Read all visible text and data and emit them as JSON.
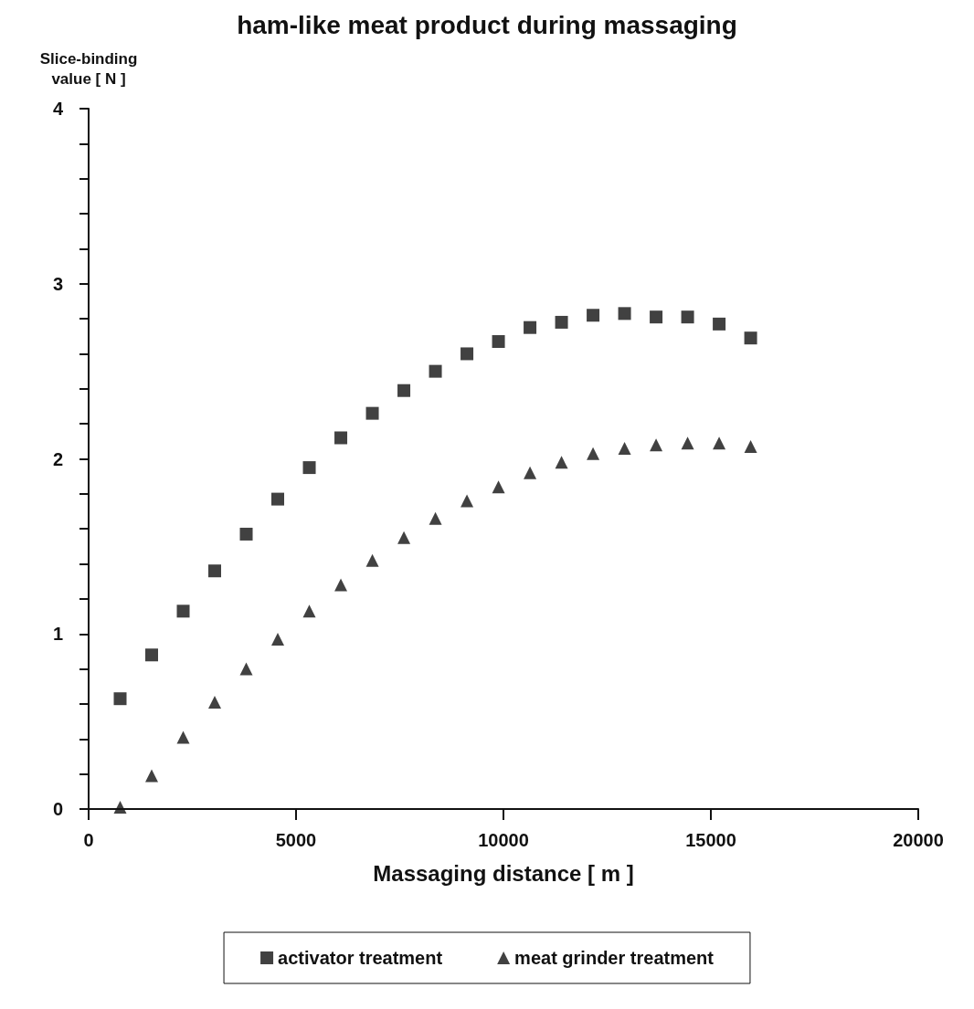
{
  "chart_data": {
    "type": "scatter",
    "title": "ham-like meat product during massaging",
    "xlabel": "Massaging distance [ m ]",
    "ylabel": "Slice-binding\nvalue [ N ]",
    "x": [
      760,
      1520,
      2280,
      3040,
      3800,
      4560,
      5320,
      6080,
      6840,
      7600,
      8360,
      9120,
      9880,
      10640,
      11400,
      12160,
      12920,
      13680,
      14440,
      15200,
      15960
    ],
    "series": [
      {
        "name": "activator treatment",
        "color": "#111111",
        "marker": "square",
        "values": [
          0.63,
          0.88,
          1.13,
          1.36,
          1.57,
          1.77,
          1.95,
          2.12,
          2.26,
          2.39,
          2.5,
          2.6,
          2.67,
          2.75,
          2.78,
          2.82,
          2.83,
          2.81,
          2.81,
          2.77,
          2.69
        ]
      },
      {
        "name": "meat grinder treatment",
        "color": "#111111",
        "marker": "triangle",
        "values": [
          0.01,
          0.19,
          0.41,
          0.61,
          0.8,
          0.97,
          1.13,
          1.28,
          1.42,
          1.55,
          1.66,
          1.76,
          1.84,
          1.92,
          1.98,
          2.03,
          2.06,
          2.08,
          2.09,
          2.09,
          2.07
        ]
      }
    ],
    "xlim": [
      0,
      20000
    ],
    "xticks": [
      0,
      5000,
      10000,
      15000,
      20000
    ],
    "ylim": [
      0,
      4
    ],
    "yticks": [
      0,
      {
        "value": 0.2,
        "label": null
      },
      {
        "value": 0.4,
        "label": null
      },
      {
        "value": 0.6,
        "label": null
      },
      {
        "value": 0.8,
        "label": null
      },
      1,
      {
        "value": 1.2,
        "label": null
      },
      {
        "value": 1.4,
        "label": null
      },
      {
        "value": 1.6,
        "label": null
      },
      {
        "value": 1.8,
        "label": null
      },
      2,
      {
        "value": 2.2,
        "label": null
      },
      {
        "value": 2.4,
        "label": null
      },
      {
        "value": 2.6,
        "label": null
      },
      {
        "value": 2.8,
        "label": null
      },
      3,
      {
        "value": 3.2,
        "label": null
      },
      {
        "value": 3.4,
        "label": null
      },
      {
        "value": 3.6,
        "label": null
      },
      {
        "value": 3.8,
        "label": null
      },
      4
    ],
    "grid": false,
    "legend": "bottom"
  }
}
